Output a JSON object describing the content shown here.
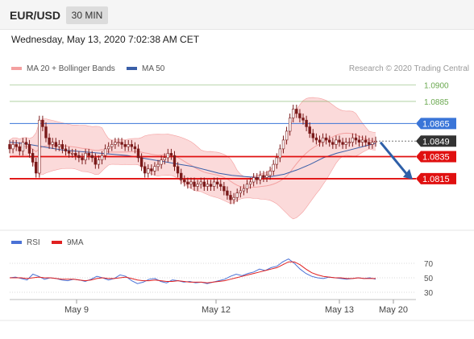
{
  "header": {
    "symbol": "EUR/USD",
    "timeframe": "30 MIN"
  },
  "date_line": "Wednesday, May 13, 2020 7:02:38 AM CET",
  "legend": {
    "bollinger": {
      "label": "MA 20 + Bollinger Bands",
      "color": "#f4a0a0"
    },
    "ma50": {
      "label": "MA 50",
      "color": "#3a5fa8"
    },
    "rsi": {
      "label": "RSI",
      "color": "#4a72d6"
    },
    "rsi_ma": {
      "label": "9MA",
      "color": "#e02020"
    }
  },
  "credit": "Research © 2020 Trading Central",
  "chart_data": [
    {
      "type": "candlestick",
      "pair": "EUR/USD",
      "interval": "30 MIN",
      "ylim": [
        1.0769,
        1.0909
      ],
      "x_ticks": [
        "May 9",
        "May 12",
        "May 13",
        "May 20"
      ],
      "colors": {
        "candle": "#7a1a1a",
        "candle_up": "#ffffff",
        "bb_fill": "#fbdada",
        "bb_line": "#f4a0a0",
        "ma50": "#3a5fa8"
      },
      "levels": [
        {
          "value": 1.09,
          "label": "1.0900",
          "kind": "target",
          "color": "#6aa84f"
        },
        {
          "value": 1.0885,
          "label": "1.0885",
          "kind": "target",
          "color": "#6aa84f"
        },
        {
          "value": 1.0865,
          "label": "1.0865",
          "kind": "resistance",
          "color": "#3a75d8"
        },
        {
          "value": 1.0849,
          "label": "1.0849",
          "kind": "last",
          "color": "#333333"
        },
        {
          "value": 1.0835,
          "label": "1.0835",
          "kind": "support",
          "color": "#e01010"
        },
        {
          "value": 1.0815,
          "label": "1.0815",
          "kind": "support",
          "color": "#e01010"
        }
      ],
      "forecast": {
        "from": 1.0848,
        "to": 1.0815,
        "color": "#2e5fa8"
      },
      "close": [
        1.0842,
        1.0846,
        1.0844,
        1.084,
        1.0848,
        1.0846,
        1.0838,
        1.083,
        1.082,
        1.0868,
        1.0862,
        1.0852,
        1.0846,
        1.0848,
        1.0844,
        1.0846,
        1.0842,
        1.084,
        1.0838,
        1.0838,
        1.0836,
        1.0834,
        1.0832,
        1.0838,
        1.0836,
        1.0834,
        1.0828,
        1.0832,
        1.0836,
        1.0842,
        1.0844,
        1.0846,
        1.0848,
        1.0848,
        1.0846,
        1.0844,
        1.0846,
        1.0844,
        1.0842,
        1.0834,
        1.0826,
        1.082,
        1.0824,
        1.0822,
        1.0826,
        1.0828,
        1.0832,
        1.0834,
        1.0838,
        1.0836,
        1.0826,
        1.082,
        1.0814,
        1.0812,
        1.081,
        1.0812,
        1.0808,
        1.081,
        1.0812,
        1.0808,
        1.081,
        1.0808,
        1.0812,
        1.081,
        1.0808,
        1.0804,
        1.08,
        1.0796,
        1.0798,
        1.0802,
        1.0804,
        1.0806,
        1.081,
        1.0812,
        1.0816,
        1.0814,
        1.0818,
        1.0816,
        1.0818,
        1.0822,
        1.0828,
        1.0834,
        1.0842,
        1.085,
        1.0858,
        1.087,
        1.0878,
        1.0874,
        1.087,
        1.0868,
        1.0862,
        1.0856,
        1.0852,
        1.085,
        1.0848,
        1.0852,
        1.085,
        1.0848,
        1.0846,
        1.085,
        1.0848,
        1.0846,
        1.0848,
        1.0848,
        1.0852,
        1.085,
        1.0848,
        1.085,
        1.0848,
        1.0846,
        1.0848,
        1.0849
      ],
      "ma50": [
        1.0848,
        1.0847,
        1.0845,
        1.0843,
        1.0841,
        1.084,
        1.0839,
        1.0838,
        1.0837,
        1.0836,
        1.0834,
        1.0832,
        1.083,
        1.0828,
        1.0826,
        1.0823,
        1.082,
        1.0818,
        1.0817,
        1.0816,
        1.0817,
        1.0819,
        1.0823,
        1.0828,
        1.0834,
        1.0838,
        1.0841,
        1.0844,
        1.0847
      ]
    },
    {
      "type": "line",
      "indicator": "RSI",
      "ylim": [
        20,
        80
      ],
      "y_ticks": [
        70,
        50,
        30
      ],
      "series": [
        {
          "name": "RSI",
          "values": [
            50,
            51,
            49,
            47,
            55,
            52,
            48,
            50,
            49,
            47,
            46,
            48,
            47,
            45,
            48,
            52,
            50,
            47,
            49,
            54,
            52,
            46,
            42,
            44,
            48,
            49,
            45,
            43,
            47,
            46,
            44,
            45,
            43,
            44,
            42,
            44,
            46,
            48,
            52,
            55,
            53,
            56,
            58,
            62,
            60,
            64,
            66,
            72,
            76,
            70,
            62,
            56,
            52,
            50,
            49,
            51,
            50,
            49,
            48,
            49,
            50,
            49,
            50,
            48
          ]
        },
        {
          "name": "9MA",
          "values": [
            50,
            50,
            50,
            49,
            50,
            51,
            50,
            50,
            49,
            48,
            48,
            48,
            47,
            46,
            47,
            49,
            50,
            49,
            49,
            50,
            51,
            49,
            47,
            46,
            46,
            47,
            46,
            45,
            45,
            46,
            45,
            44,
            44,
            44,
            43,
            44,
            45,
            46,
            48,
            50,
            52,
            54,
            56,
            58,
            60,
            62,
            64,
            68,
            72,
            72,
            68,
            62,
            57,
            54,
            52,
            51,
            50,
            50,
            49,
            49,
            50,
            49,
            49,
            49
          ]
        }
      ]
    }
  ]
}
